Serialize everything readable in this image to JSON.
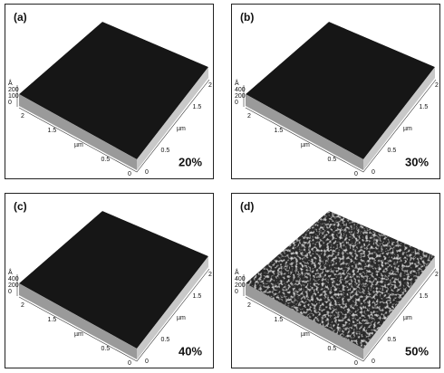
{
  "panels": [
    {
      "label": "(a)",
      "percent": "20%",
      "z_ticks": [
        "Å",
        "200",
        "100",
        "0"
      ],
      "left_ticks": [
        "2",
        "1.5",
        "µm",
        "0.5",
        "0"
      ],
      "right_ticks": [
        "0",
        "0.5",
        "µm",
        "1.5",
        "2"
      ]
    },
    {
      "label": "(b)",
      "percent": "30%",
      "z_ticks": [
        "Å",
        "400",
        "200",
        "0"
      ],
      "left_ticks": [
        "2",
        "1.5",
        "µm",
        "0.5",
        "0"
      ],
      "right_ticks": [
        "0",
        "0.5",
        "µm",
        "1.5",
        "2"
      ]
    },
    {
      "label": "(c)",
      "percent": "40%",
      "z_ticks": [
        "Å",
        "400",
        "200",
        "0"
      ],
      "left_ticks": [
        "2",
        "1.5",
        "µm",
        "0.5",
        "0"
      ],
      "right_ticks": [
        "0",
        "0.5",
        "µm",
        "1.5",
        "2"
      ]
    },
    {
      "label": "(d)",
      "percent": "50%",
      "z_ticks": [
        "Å",
        "400",
        "200",
        "0"
      ],
      "left_ticks": [
        "2",
        "1.5",
        "µm",
        "0.5",
        "0"
      ],
      "right_ticks": [
        "0",
        "0.5",
        "µm",
        "1.5",
        "2"
      ]
    }
  ]
}
